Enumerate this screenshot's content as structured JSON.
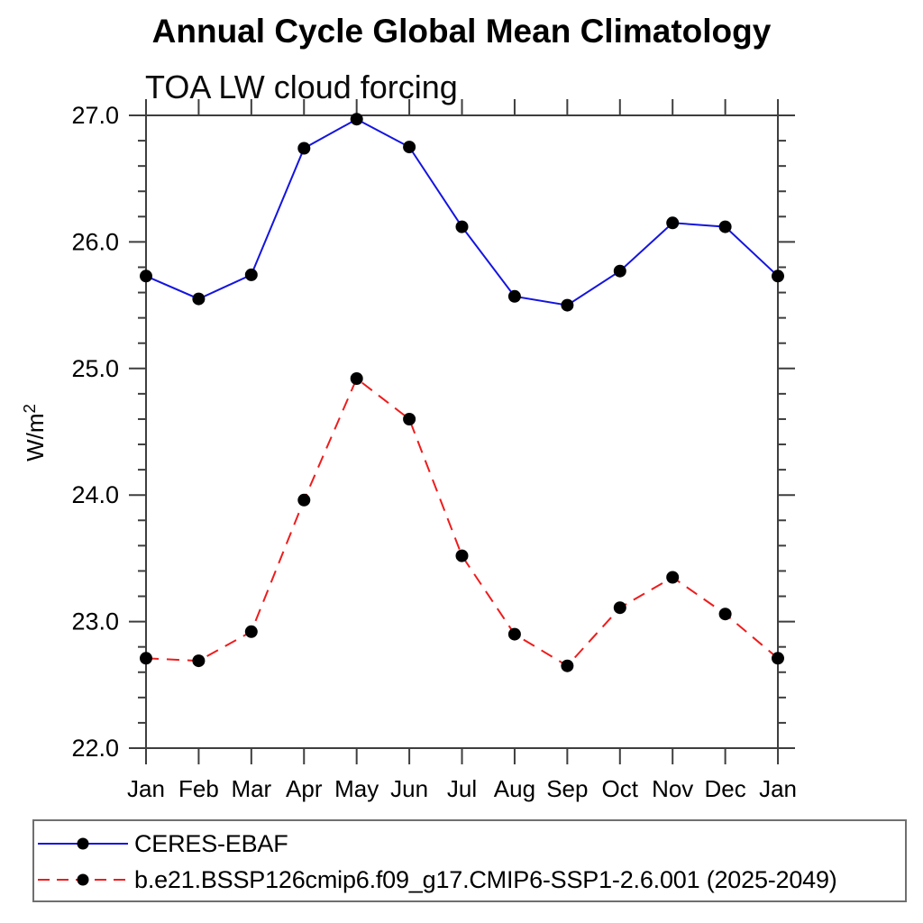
{
  "title": "Annual Cycle Global Mean Climatology",
  "subtitle": "TOA LW cloud forcing",
  "chart_data": {
    "type": "line",
    "title": "Annual Cycle Global Mean Climatology",
    "subtitle": "TOA LW cloud forcing",
    "ylabel": "W/m²",
    "xlabel": "",
    "x_categories": [
      "Jan",
      "Feb",
      "Mar",
      "Apr",
      "May",
      "Jun",
      "Jul",
      "Aug",
      "Sep",
      "Oct",
      "Nov",
      "Dec",
      "Jan"
    ],
    "ylim": [
      22.0,
      27.0
    ],
    "y_tick_values": [
      27.0,
      26.0,
      25.0,
      24.0,
      23.0,
      22.0
    ],
    "y_tick_labels": [
      "27.0",
      "26.0",
      "25.0",
      "24.0",
      "23.0",
      "22.0"
    ],
    "y_minor_step": 0.2,
    "grid": false,
    "legend_position": "bottom-left-box",
    "axis_color": "#3e3e3e",
    "series": [
      {
        "name": "CERES-EBAF",
        "line_style": "solid",
        "color": "#1414e0",
        "marker": "filled-circle",
        "marker_color": "#000000",
        "values": [
          25.73,
          25.55,
          25.74,
          26.74,
          26.97,
          26.75,
          26.12,
          25.57,
          25.5,
          25.77,
          26.15,
          26.12,
          25.73
        ]
      },
      {
        "name": "b.e21.BSSP126cmip6.f09_g17.CMIP6-SSP1-2.6.001 (2025-2049)",
        "line_style": "dashed",
        "color": "#ee1c1c",
        "marker": "filled-circle",
        "marker_color": "#000000",
        "values": [
          22.71,
          22.69,
          22.92,
          23.96,
          24.92,
          24.6,
          23.52,
          22.9,
          22.65,
          23.11,
          23.35,
          23.06,
          22.71
        ]
      }
    ]
  }
}
